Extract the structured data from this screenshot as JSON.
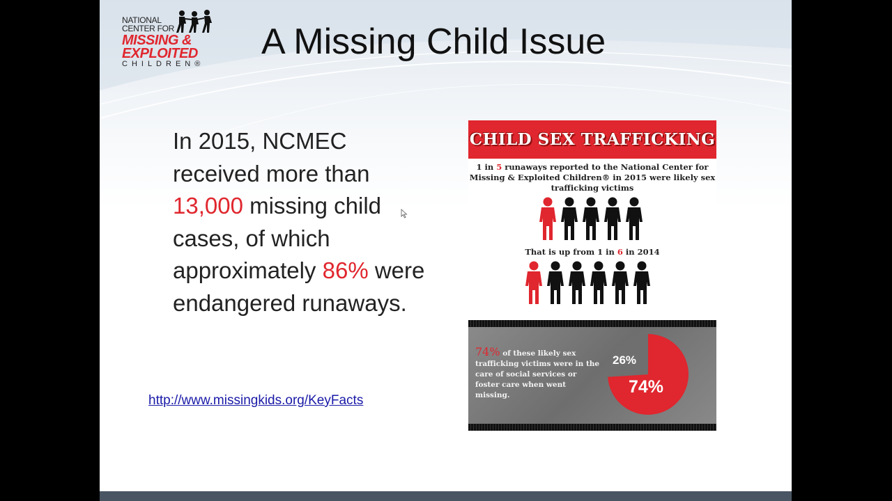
{
  "logo": {
    "line1": "NATIONAL",
    "line2": "CENTER FOR",
    "line3": "MISSING &",
    "line4": "EXPLOITED",
    "line5": "CHILDREN®"
  },
  "title": "A Missing Child Issue",
  "body": {
    "seg1": "In 2015, NCMEC received more than ",
    "highlight1": "13,000",
    "seg2": " missing child cases, of which approximately ",
    "highlight2": "86%",
    "seg3": " were endangered runaways."
  },
  "link": "http://www.missingkids.org/KeyFacts",
  "infographic": {
    "banner": "CHILD SEX TRAFFICKING",
    "stat1_a": "1 in ",
    "stat1_num": "5",
    "stat1_b": " runaways reported to the National Center for Missing & Exploited Children® in 2015 were likely sex trafficking victims",
    "stat2_a": "That is up from 1 in ",
    "stat2_num": "6",
    "stat2_b": " in 2014",
    "row1_highlighted_of": 5,
    "row2_highlighted_of": 6,
    "bottom_pct": "74%",
    "bottom_text": " of these likely sex trafficking victims were in the care of social services or foster care when went missing.",
    "pie": [
      {
        "label": "26%",
        "value": 26,
        "color": "#6f6f6f"
      },
      {
        "label": "74%",
        "value": 74,
        "color": "#e0262e"
      }
    ]
  },
  "colors": {
    "accent_red": "#e0262e",
    "bottom_bar": "#4a5563"
  }
}
